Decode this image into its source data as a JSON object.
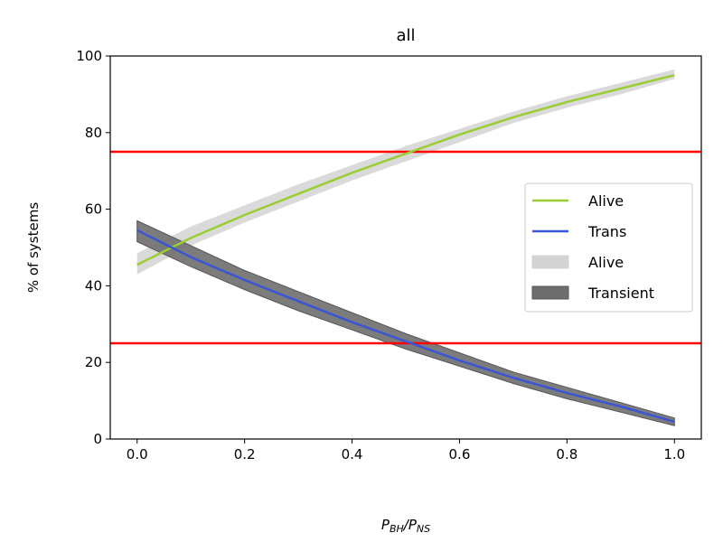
{
  "chart_data": {
    "type": "line",
    "title": "all",
    "xlabel": {
      "base": "P",
      "sub1": "BH",
      "slash": "/",
      "base2": "P",
      "sub2": "NS"
    },
    "ylabel": "% of systems",
    "xlim": [
      -0.05,
      1.05
    ],
    "ylim": [
      0,
      100
    ],
    "xticks": [
      0.0,
      0.2,
      0.4,
      0.6,
      0.8,
      1.0
    ],
    "xtick_labels": [
      "0.0",
      "0.2",
      "0.4",
      "0.6",
      "0.8",
      "1.0"
    ],
    "yticks": [
      0,
      20,
      40,
      60,
      80,
      100
    ],
    "ytick_labels": [
      "0",
      "20",
      "40",
      "60",
      "80",
      "100"
    ],
    "grid": false,
    "legend_position": "center-right",
    "series": [
      {
        "name": "Alive",
        "kind": "line",
        "color": "#9acd32",
        "x": [
          0.0,
          0.1,
          0.2,
          0.3,
          0.4,
          0.5,
          0.6,
          0.7,
          0.8,
          0.9,
          1.0
        ],
        "y": [
          45.5,
          52.5,
          58.5,
          64.0,
          69.5,
          74.5,
          79.5,
          84.0,
          88.0,
          91.5,
          95.0
        ]
      },
      {
        "name": "Trans",
        "kind": "line",
        "color": "#3a55d6",
        "x": [
          0.0,
          0.1,
          0.2,
          0.3,
          0.4,
          0.5,
          0.6,
          0.7,
          0.8,
          0.9,
          1.0
        ],
        "y": [
          54.5,
          47.5,
          41.5,
          36.0,
          30.5,
          25.5,
          20.5,
          16.0,
          12.0,
          8.5,
          4.5
        ]
      },
      {
        "name": "Alive",
        "kind": "band",
        "color": "#d3d3d3",
        "x": [
          0.0,
          0.1,
          0.2,
          0.3,
          0.4,
          0.5,
          0.6,
          0.7,
          0.8,
          0.9,
          1.0
        ],
        "lower": [
          43.0,
          50.5,
          56.5,
          62.0,
          67.5,
          72.5,
          77.5,
          82.5,
          86.5,
          90.0,
          94.0
        ],
        "upper": [
          48.5,
          55.5,
          61.0,
          66.5,
          71.5,
          76.5,
          81.0,
          85.5,
          89.5,
          93.0,
          96.5
        ]
      },
      {
        "name": "Transient",
        "kind": "band",
        "color": "#6e6e6e",
        "x": [
          0.0,
          0.1,
          0.2,
          0.3,
          0.4,
          0.5,
          0.6,
          0.7,
          0.8,
          0.9,
          1.0
        ],
        "lower": [
          51.5,
          45.0,
          39.0,
          33.5,
          28.5,
          23.5,
          19.0,
          14.5,
          10.5,
          7.0,
          3.5
        ],
        "upper": [
          57.0,
          50.5,
          44.0,
          38.5,
          33.0,
          27.5,
          22.5,
          17.5,
          13.5,
          9.5,
          5.5
        ]
      }
    ],
    "reference_lines": [
      {
        "y": 75,
        "color": "#ff0000"
      },
      {
        "y": 25,
        "color": "#ff0000"
      }
    ]
  }
}
